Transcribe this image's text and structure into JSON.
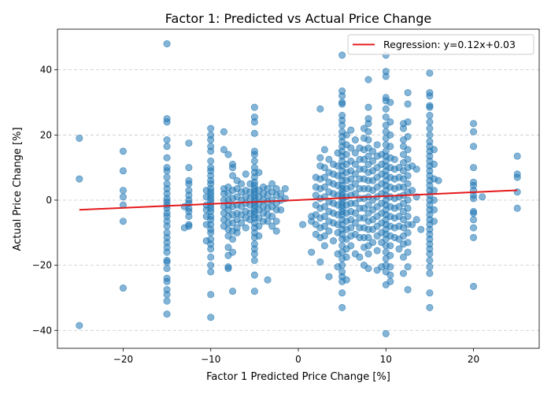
{
  "chart_data": {
    "type": "scatter",
    "title": "Factor 1: Predicted vs Actual Price Change",
    "xlabel": "Factor 1 Predicted Price Change [%]",
    "ylabel": "Actual Price Change [%]",
    "xlim": [
      -27.5,
      27.5
    ],
    "ylim": [
      -45.5,
      52.5
    ],
    "xticks": [
      -20,
      -10,
      0,
      10,
      20
    ],
    "yticks": [
      -40,
      -20,
      0,
      20,
      40
    ],
    "grid": "y-dashed",
    "legend_position": "top-right",
    "point_color": "#1f77b4",
    "regression": {
      "label": "Regression: y=0.12x+0.03",
      "slope": 0.12,
      "intercept": 0.03,
      "x_range": [
        -25,
        25
      ],
      "color": "#e41a1c"
    },
    "columns": [
      {
        "x": -25,
        "y": [
          19,
          6.5,
          -38.5
        ]
      },
      {
        "x": -20,
        "y": [
          15,
          9,
          3,
          1,
          -1.5,
          -6.5,
          -27
        ]
      },
      {
        "x": -15,
        "y": [
          48,
          25,
          24,
          18.5,
          16.5,
          13,
          10,
          9,
          7,
          5,
          3.5,
          2,
          0.5,
          -0.5,
          -1.5,
          -2.5,
          -4,
          -5,
          -6.5,
          -8,
          -10,
          -11.5,
          -13,
          -14.5,
          -16,
          -18.5,
          -19,
          -21,
          -24,
          -25,
          -27.5,
          -29,
          -31,
          -35
        ]
      },
      {
        "x": -12.5,
        "y": [
          17.5,
          10,
          6,
          5,
          3,
          1.5,
          0,
          -1,
          -2.5,
          -3.5,
          -5,
          -7.5,
          -8
        ]
      },
      {
        "x": -13,
        "y": [
          -2,
          -8.5
        ]
      },
      {
        "x": -10.5,
        "y": [
          3,
          1,
          -1.5,
          -3,
          -5,
          -7.5,
          -12.5
        ]
      },
      {
        "x": -10,
        "y": [
          22,
          20,
          18.5,
          16.5,
          15,
          12,
          10,
          9,
          7.5,
          6,
          5,
          3.5,
          2.5,
          1.5,
          0.5,
          -0.5,
          -1.5,
          -2.5,
          -3.5,
          -5,
          -6,
          -7.5,
          -9,
          -10,
          -12,
          -13.5,
          -15,
          -17.5,
          -20,
          -22,
          -29,
          -36
        ]
      },
      {
        "x": -8.5,
        "y": [
          21,
          15.5,
          3.5,
          2,
          0,
          -2,
          -4,
          -6,
          -8
        ]
      },
      {
        "x": -8,
        "y": [
          14,
          4,
          2,
          0,
          -1.5,
          -3,
          -5,
          -7,
          -9,
          -11,
          -14.5,
          -17,
          -20.5,
          -21
        ]
      },
      {
        "x": -7.5,
        "y": [
          11,
          10,
          7.5,
          3,
          0.5,
          -2,
          -4.5,
          -7,
          -9.5,
          -12,
          -16,
          -28
        ]
      },
      {
        "x": -7,
        "y": [
          6,
          3.5,
          1,
          -1.5,
          -4,
          -6,
          -8.5,
          -10
        ]
      },
      {
        "x": -6.5,
        "y": [
          5,
          2.5,
          0,
          -2,
          -4.5,
          -7
        ]
      },
      {
        "x": -6,
        "y": [
          8,
          3,
          1,
          -1,
          -3.5,
          -5.5,
          -8.5
        ]
      },
      {
        "x": -5.5,
        "y": [
          5,
          2.5,
          0.5,
          -1.5,
          -4,
          -6
        ]
      },
      {
        "x": -5,
        "y": [
          28.5,
          25.5,
          24,
          20.5,
          15,
          14,
          12,
          10,
          8.5,
          7,
          5.5,
          4.5,
          3.5,
          2.5,
          1.5,
          0.5,
          -0.5,
          -1.5,
          -2.5,
          -3.5,
          -4.5,
          -5.5,
          -7,
          -8.5,
          -10,
          -11.5,
          -13.5,
          -15,
          -16.5,
          -18.5,
          -23,
          -28
        ]
      },
      {
        "x": -4.5,
        "y": [
          8.5,
          3,
          1,
          -1,
          -3,
          -5.5,
          -8,
          -11
        ]
      },
      {
        "x": -4,
        "y": [
          4,
          2,
          0,
          -2,
          -4,
          -6.5
        ]
      },
      {
        "x": -3.5,
        "y": [
          3.5,
          1.5,
          -0.5,
          -2.5,
          -4.5,
          -6.5,
          -24.5
        ]
      },
      {
        "x": -3,
        "y": [
          5,
          2.5,
          0,
          -2,
          -5,
          -8
        ]
      },
      {
        "x": -2.5,
        "y": [
          3.5,
          1.5,
          -1,
          -3,
          -6.5,
          -9.5
        ]
      },
      {
        "x": -2,
        "y": [
          2,
          0,
          -3
        ]
      },
      {
        "x": -1.5,
        "y": [
          3.5,
          0.5
        ]
      },
      {
        "x": 0.5,
        "y": [
          -7.5
        ]
      },
      {
        "x": 1.5,
        "y": [
          -5,
          -6.5,
          -16
        ]
      },
      {
        "x": 2,
        "y": [
          7,
          4,
          1.5,
          -1.5,
          -4.5,
          -7.5,
          -10.5
        ]
      },
      {
        "x": 2.5,
        "y": [
          28,
          13,
          10.5,
          6.5,
          3.5,
          0.5,
          -2.5,
          -5.5,
          -8.5,
          -11.5,
          -19
        ]
      },
      {
        "x": 3,
        "y": [
          15.5,
          10,
          7,
          4,
          1,
          -2,
          -5,
          -8,
          -11,
          -14
        ]
      },
      {
        "x": 3.5,
        "y": [
          12.5,
          8.5,
          5.5,
          2.5,
          -0.5,
          -3.5,
          -6.5,
          -9.5,
          -23.5
        ]
      },
      {
        "x": 4,
        "y": [
          11,
          8,
          5,
          2,
          -1,
          -4,
          -7,
          -12.5
        ]
      },
      {
        "x": 4.5,
        "y": [
          14.5,
          10.5,
          7.5,
          4.5,
          1.5,
          -1.5,
          -4.5,
          -7.5,
          -10,
          -16.5,
          -20.5
        ]
      },
      {
        "x": 5,
        "y": [
          44.5,
          33.5,
          32,
          30,
          29.5,
          26,
          24.5,
          23,
          21,
          19.5,
          18,
          16.5,
          15,
          13.5,
          12,
          10.5,
          9,
          7.5,
          6,
          4.5,
          3.5,
          2.5,
          1.5,
          0.5,
          -0.5,
          -1.5,
          -2.5,
          -3.5,
          -4.5,
          -6,
          -7.5,
          -9,
          -10.5,
          -12,
          -14,
          -16,
          -18,
          -20,
          -22,
          -23.5,
          -25,
          -28.5,
          -33
        ]
      },
      {
        "x": 5.5,
        "y": [
          20,
          17,
          14,
          11,
          8.5,
          6,
          3.5,
          1,
          -1.5,
          -4,
          -6.5,
          -9,
          -12,
          -15,
          -17.5,
          -24.5
        ]
      },
      {
        "x": 6,
        "y": [
          21.5,
          16,
          12,
          9,
          6.5,
          4,
          1.5,
          -1,
          -3.5,
          -6,
          -8.5,
          -11,
          -14
        ]
      },
      {
        "x": 6.5,
        "y": [
          18.5,
          14.5,
          11,
          8,
          5,
          2,
          -1,
          -4,
          -7,
          -10.5,
          -16.5
        ]
      },
      {
        "x": 7,
        "y": [
          16,
          12.5,
          9.5,
          6.5,
          3.5,
          0.5,
          -2.5,
          -5.5,
          -8.5,
          -11.5,
          -17.5
        ]
      },
      {
        "x": 7.5,
        "y": [
          22,
          19,
          15.5,
          12.5,
          9.5,
          6.5,
          3.5,
          0.5,
          -2.5,
          -5.5,
          -8.5,
          -11.5,
          -14.5,
          -20
        ]
      },
      {
        "x": 8,
        "y": [
          37,
          28.5,
          25,
          23.5,
          21,
          18.5,
          16,
          13.5,
          11,
          8.5,
          6,
          3.5,
          1,
          -1.5,
          -4,
          -6.5,
          -9,
          -11.5,
          -14,
          -16.5,
          -21
        ]
      },
      {
        "x": 8.5,
        "y": [
          15,
          12,
          9,
          6,
          3,
          0,
          -3,
          -6,
          -9,
          -13
        ]
      },
      {
        "x": 9,
        "y": [
          17,
          13.5,
          10,
          7,
          4,
          1,
          -2,
          -5,
          -8,
          -11,
          -15.5,
          -21.5
        ]
      },
      {
        "x": 9.5,
        "y": [
          14,
          11,
          8,
          5,
          2,
          -1,
          -4,
          -7,
          -10,
          -13,
          -20.5
        ]
      },
      {
        "x": 10,
        "y": [
          44.5,
          39.5,
          38,
          31.5,
          30.5,
          28,
          25.5,
          23,
          21,
          19,
          17,
          15,
          13.5,
          12,
          10.5,
          9,
          7.5,
          6,
          4.5,
          3,
          1.5,
          0,
          -1.5,
          -3,
          -4.5,
          -6,
          -7.5,
          -9,
          -10.5,
          -12,
          -14,
          -16,
          -18,
          -20,
          -22,
          -26,
          -41
        ]
      },
      {
        "x": 10.5,
        "y": [
          30,
          24,
          20,
          16.5,
          13,
          10,
          7,
          4,
          1,
          -2,
          -5,
          -8,
          -11,
          -14,
          -17,
          -20.5,
          -23,
          -25
        ]
      },
      {
        "x": 11,
        "y": [
          12.5,
          9.5,
          6.5,
          3.5,
          0.5,
          -2.5,
          -5.5,
          -8.5,
          -11.5
        ]
      },
      {
        "x": 11.5,
        "y": [
          10,
          7,
          4,
          1,
          -2,
          -5,
          -8,
          -12,
          -15
        ]
      },
      {
        "x": 12,
        "y": [
          23.5,
          22,
          18.5,
          16.5,
          14,
          11.5,
          9,
          6.5,
          4,
          1.5,
          -1,
          -3.5,
          -6,
          -8.5,
          -11,
          -13.5,
          -17.5,
          -22.5
        ]
      },
      {
        "x": 12.5,
        "y": [
          33,
          29.5,
          24,
          19.5,
          15.5,
          12.5,
          10,
          7.5,
          5,
          2.5,
          0,
          -2.5,
          -5,
          -7.5,
          -10,
          -13,
          -16,
          -20.5,
          -27.5
        ]
      },
      {
        "x": 13,
        "y": [
          10.5,
          3,
          -7.5
        ]
      },
      {
        "x": 13.5,
        "y": [
          9.5,
          1,
          -6
        ]
      },
      {
        "x": 14,
        "y": [
          -9
        ]
      },
      {
        "x": 15,
        "y": [
          39,
          33,
          32,
          29,
          28.5,
          26,
          24,
          22,
          20,
          18,
          16.5,
          15,
          13.5,
          12,
          10.5,
          9,
          7.5,
          6,
          4.5,
          3,
          1.5,
          0,
          -1.5,
          -3,
          -4.5,
          -6,
          -7.5,
          -9,
          -10.5,
          -12,
          -13.5,
          -15,
          -16.5,
          -18.5,
          -20.5,
          -22.5,
          -28.5,
          -33
        ]
      },
      {
        "x": 15.5,
        "y": [
          15.5,
          11,
          6.5,
          3,
          0,
          -3,
          -6.5
        ]
      },
      {
        "x": 16,
        "y": [
          6
        ]
      },
      {
        "x": 20,
        "y": [
          23.5,
          21,
          16.5,
          10,
          5.5,
          4.5,
          3,
          1.5,
          0.5,
          -3.5,
          -4,
          -6,
          -8.5,
          -11.5,
          -26.5
        ]
      },
      {
        "x": 21,
        "y": [
          1
        ]
      },
      {
        "x": 25,
        "y": [
          13.5,
          8,
          7,
          2.5,
          -2.5
        ]
      }
    ]
  }
}
